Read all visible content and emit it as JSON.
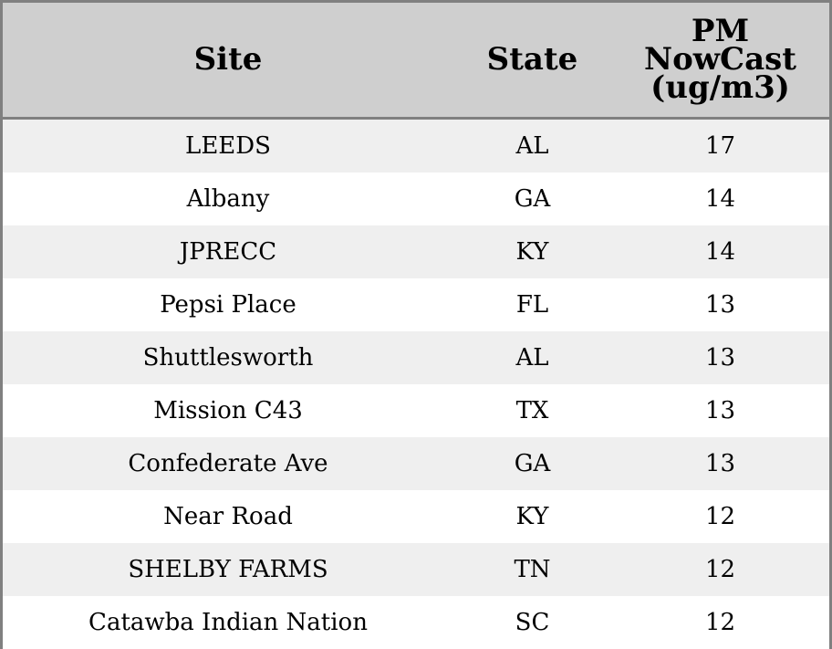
{
  "chart_data": {
    "type": "table",
    "columns": [
      "Site",
      "State",
      "PM NowCast (ug/m3)"
    ],
    "column_header_lines": [
      [
        "Site"
      ],
      [
        "State"
      ],
      [
        "PM",
        "NowCast",
        "(ug/m3)"
      ]
    ],
    "rows": [
      {
        "site": "LEEDS",
        "state": "AL",
        "value": 17
      },
      {
        "site": "Albany",
        "state": "GA",
        "value": 14
      },
      {
        "site": "JPRECC",
        "state": "KY",
        "value": 14
      },
      {
        "site": "Pepsi Place",
        "state": "FL",
        "value": 13
      },
      {
        "site": "Shuttlesworth",
        "state": "AL",
        "value": 13
      },
      {
        "site": "Mission C43",
        "state": "TX",
        "value": 13
      },
      {
        "site": "Confederate Ave",
        "state": "GA",
        "value": 13
      },
      {
        "site": "Near Road",
        "state": "KY",
        "value": 12
      },
      {
        "site": "SHELBY FARMS",
        "state": "TN",
        "value": 12
      },
      {
        "site": "Catawba Indian Nation",
        "state": "SC",
        "value": 12
      }
    ]
  },
  "colors": {
    "header_background": "#cfcfcf",
    "row_stripe": "#efefef",
    "row_plain": "#ffffff",
    "border": "#808080"
  }
}
